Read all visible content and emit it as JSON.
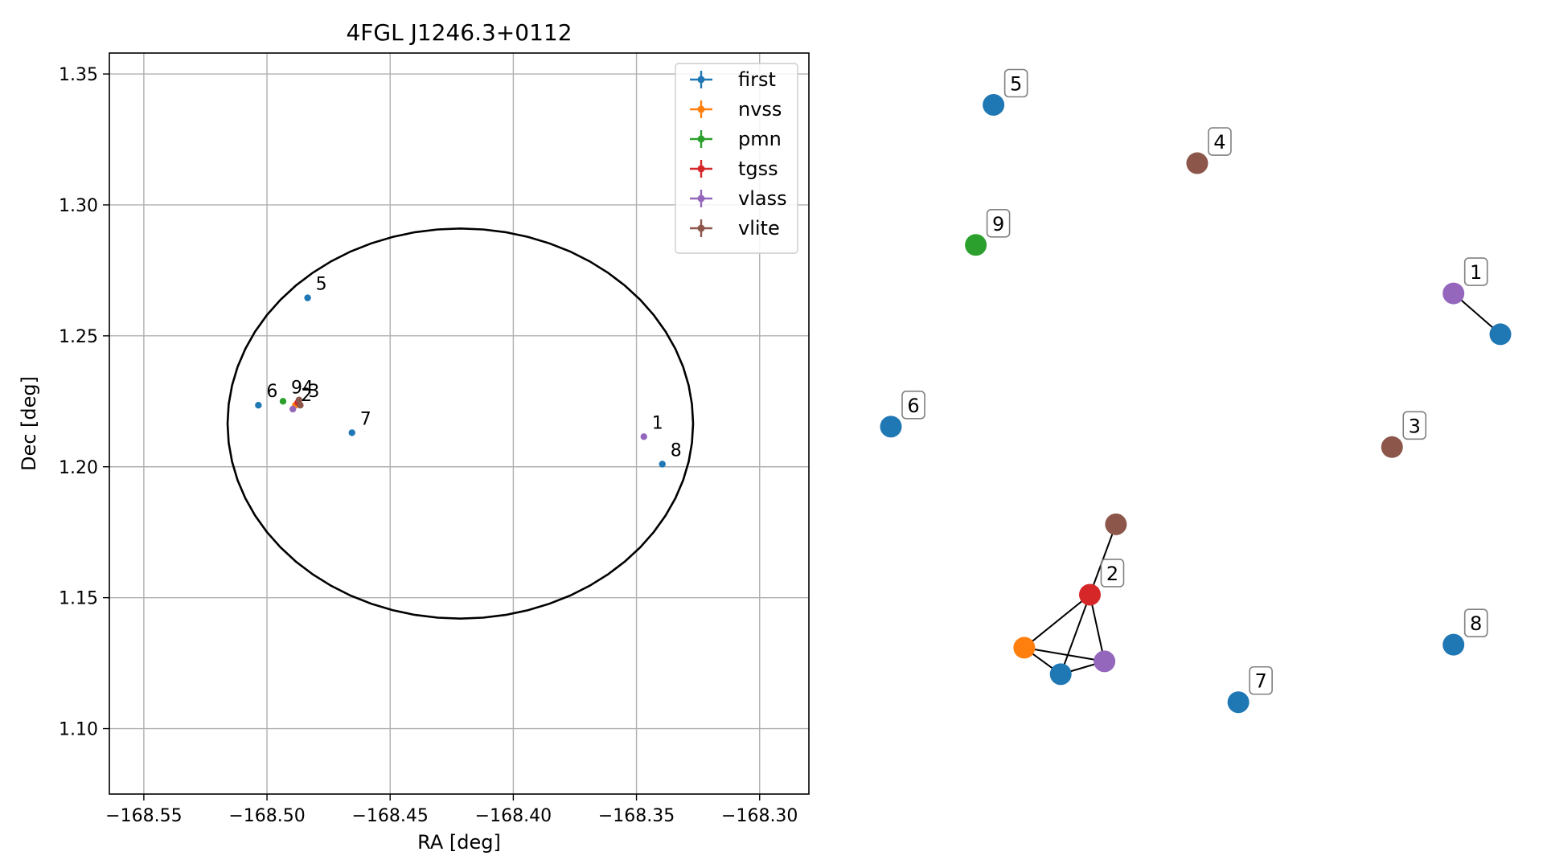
{
  "chart_data": [
    {
      "type": "scatter",
      "title": "4FGL J1246.3+0112",
      "xlabel": "RA [deg]",
      "ylabel": "Dec [deg]",
      "xlim": [
        -168.564,
        -168.28
      ],
      "ylim": [
        1.075,
        1.358
      ],
      "xticks": [
        -168.55,
        -168.5,
        -168.45,
        -168.4,
        -168.35,
        -168.3
      ],
      "xtick_labels": [
        "−168.55",
        "−168.50",
        "−168.45",
        "−168.40",
        "−168.35",
        "−168.30"
      ],
      "yticks": [
        1.1,
        1.15,
        1.2,
        1.25,
        1.3,
        1.35
      ],
      "ytick_labels": [
        "1.10",
        "1.15",
        "1.20",
        "1.25",
        "1.30",
        "1.35"
      ],
      "grid": true,
      "legend_position": "top-right",
      "ellipse": {
        "center": [
          -168.4215,
          1.2165
        ],
        "semi_axis_ra": 0.0945,
        "semi_axis_dec": 0.0745
      },
      "series": [
        {
          "name": "first",
          "color": "#1f77b4",
          "points": [
            [
              -168.4835,
              1.2645
            ],
            [
              -168.5035,
              1.2235
            ],
            [
              -168.4655,
              1.213
            ],
            [
              -168.3395,
              1.201
            ]
          ]
        },
        {
          "name": "nvss",
          "color": "#ff7f0e",
          "points": [
            [
              -168.4885,
              1.2235
            ]
          ]
        },
        {
          "name": "pmn",
          "color": "#2ca02c",
          "points": [
            [
              -168.4935,
              1.225
            ]
          ]
        },
        {
          "name": "tgss",
          "color": "#d62728",
          "points": [
            [
              -168.4875,
              1.2245
            ]
          ]
        },
        {
          "name": "vlass",
          "color": "#9467bd",
          "points": [
            [
              -168.347,
              1.2115
            ],
            [
              -168.4895,
              1.222
            ]
          ]
        },
        {
          "name": "vlite",
          "color": "#8c564b",
          "points": [
            [
              -168.487,
              1.2255
            ],
            [
              -168.4865,
              1.2235
            ]
          ]
        }
      ],
      "annotations": [
        {
          "text": "5",
          "x": -168.4835,
          "y": 1.2645
        },
        {
          "text": "6",
          "x": -168.5035,
          "y": 1.2235
        },
        {
          "text": "9",
          "x": -168.4935,
          "y": 1.225
        },
        {
          "text": "4",
          "x": -168.489,
          "y": 1.225
        },
        {
          "text": "2",
          "x": -168.4895,
          "y": 1.222
        },
        {
          "text": "3",
          "x": -168.4865,
          "y": 1.2235
        },
        {
          "text": "7",
          "x": -168.4655,
          "y": 1.213
        },
        {
          "text": "1",
          "x": -168.347,
          "y": 1.2115
        },
        {
          "text": "8",
          "x": -168.3395,
          "y": 1.201
        }
      ]
    },
    {
      "type": "network",
      "axes": false,
      "nodes": [
        {
          "id": "5",
          "label": "5",
          "catalog": "first",
          "x": 0.197,
          "y": 0.957
        },
        {
          "id": "4",
          "label": "4",
          "catalog": "vlite",
          "x": 0.588,
          "y": 0.88
        },
        {
          "id": "9",
          "label": "9",
          "catalog": "pmn",
          "x": 0.163,
          "y": 0.772
        },
        {
          "id": "1",
          "label": "1",
          "catalog": "vlass",
          "x": 1.08,
          "y": 0.708
        },
        {
          "id": "1b",
          "label": "",
          "catalog": "first",
          "x": 1.17,
          "y": 0.654
        },
        {
          "id": "6",
          "label": "6",
          "catalog": "first",
          "x": 0.0,
          "y": 0.532
        },
        {
          "id": "3",
          "label": "3",
          "catalog": "vlite",
          "x": 0.962,
          "y": 0.505
        },
        {
          "id": "2v",
          "label": "",
          "catalog": "vlite",
          "x": 0.432,
          "y": 0.403
        },
        {
          "id": "2",
          "label": "2",
          "catalog": "tgss",
          "x": 0.382,
          "y": 0.31
        },
        {
          "id": "8",
          "label": "8",
          "catalog": "first",
          "x": 1.08,
          "y": 0.244
        },
        {
          "id": "2n",
          "label": "",
          "catalog": "nvss",
          "x": 0.256,
          "y": 0.24
        },
        {
          "id": "2l",
          "label": "",
          "catalog": "vlass",
          "x": 0.41,
          "y": 0.222
        },
        {
          "id": "7",
          "label": "7",
          "catalog": "first",
          "x": 0.667,
          "y": 0.168
        },
        {
          "id": "2f",
          "label": "",
          "catalog": "first",
          "x": 0.326,
          "y": 0.205
        }
      ],
      "edges": [
        [
          "1",
          "1b"
        ],
        [
          "2v",
          "2"
        ],
        [
          "2",
          "2n"
        ],
        [
          "2",
          "2f"
        ],
        [
          "2",
          "2l"
        ],
        [
          "2n",
          "2f"
        ],
        [
          "2n",
          "2l"
        ],
        [
          "2f",
          "2l"
        ]
      ]
    }
  ]
}
